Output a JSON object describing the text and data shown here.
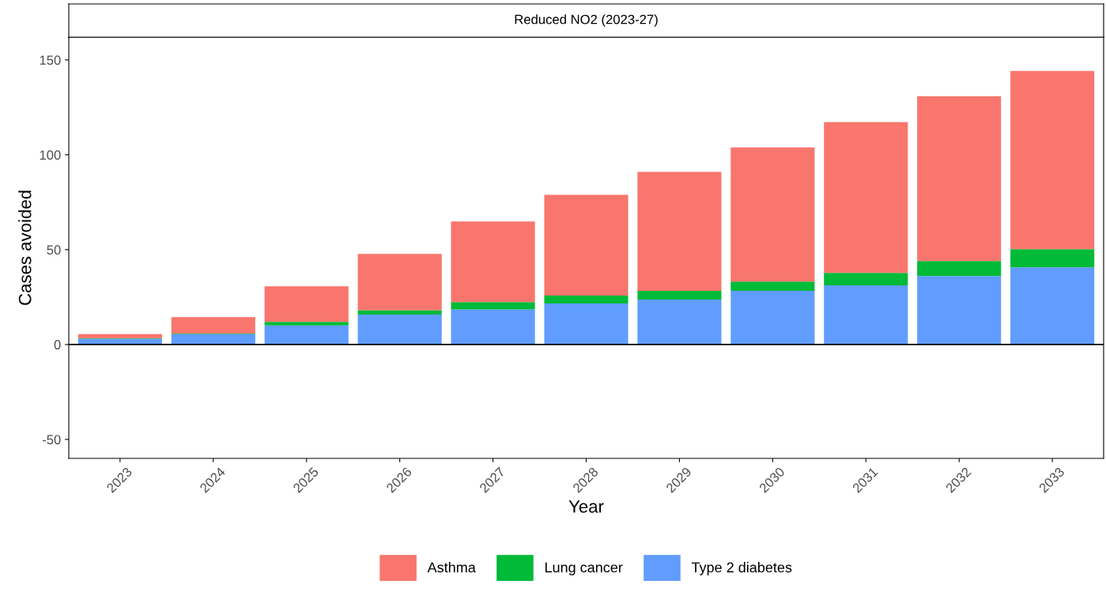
{
  "chart_data": {
    "type": "bar",
    "title": "Reduced NO2 (2023-27)",
    "xlabel": "Year",
    "ylabel": "Cases avoided",
    "categories": [
      "2023",
      "2024",
      "2025",
      "2026",
      "2027",
      "2028",
      "2029",
      "2030",
      "2031",
      "2032",
      "2033"
    ],
    "stacked": true,
    "series": [
      {
        "name": "Type 2 diabetes",
        "color": "#619cff",
        "values": [
          3.1,
          5.5,
          10.1,
          15.8,
          18.5,
          21.6,
          23.7,
          28.3,
          31.2,
          36.1,
          40.7
        ]
      },
      {
        "name": "Lung cancer",
        "color": "#00ba38",
        "values": [
          0.2,
          0.3,
          1.9,
          2.3,
          3.9,
          4.2,
          4.6,
          4.9,
          6.6,
          7.9,
          9.6
        ]
      },
      {
        "name": "Asthma",
        "color": "#f8766d",
        "values": [
          2.2,
          8.7,
          18.7,
          29.7,
          42.4,
          53.1,
          62.7,
          70.7,
          79.4,
          86.9,
          93.9
        ]
      }
    ],
    "ylim": [
      -60,
      162
    ],
    "yticks": [
      -50,
      0,
      50,
      100,
      150
    ],
    "ref_lines": [
      {
        "axis": "y",
        "value": 0,
        "color": "#000000"
      }
    ],
    "legend": "bottom",
    "grid": false
  }
}
